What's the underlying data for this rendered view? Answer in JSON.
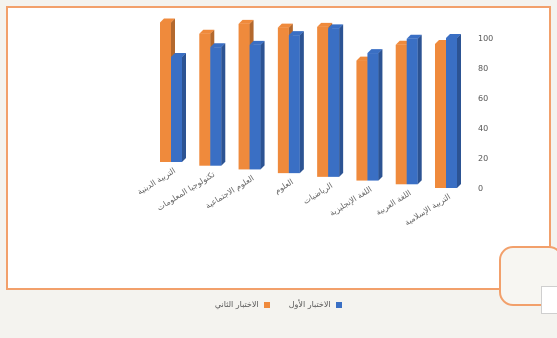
{
  "chart_data": {
    "type": "bar",
    "categories": [
      "التربية الدينية",
      "تكنولوجيا المعلومات",
      "العلوم الاجتماعية",
      "العلوم",
      "الرياضيات",
      "اللغة الإنجليزية",
      "اللغة العربية",
      "التربية الإسلامية"
    ],
    "series": [
      {
        "name": "الاختبار الأول",
        "values": [
          70,
          79,
          83,
          92,
          99,
          85,
          97,
          100
        ]
      },
      {
        "name": "الاختبار الثاني",
        "values": [
          93,
          88,
          97,
          97,
          100,
          80,
          93,
          96
        ]
      }
    ],
    "ylim": [
      0,
      100
    ],
    "yticks": [
      "0",
      "20",
      "40",
      "60",
      "80",
      "100"
    ],
    "legend": "bottom",
    "colors": {
      "first": "#3a6fc4",
      "second": "#ef8a3c"
    }
  }
}
